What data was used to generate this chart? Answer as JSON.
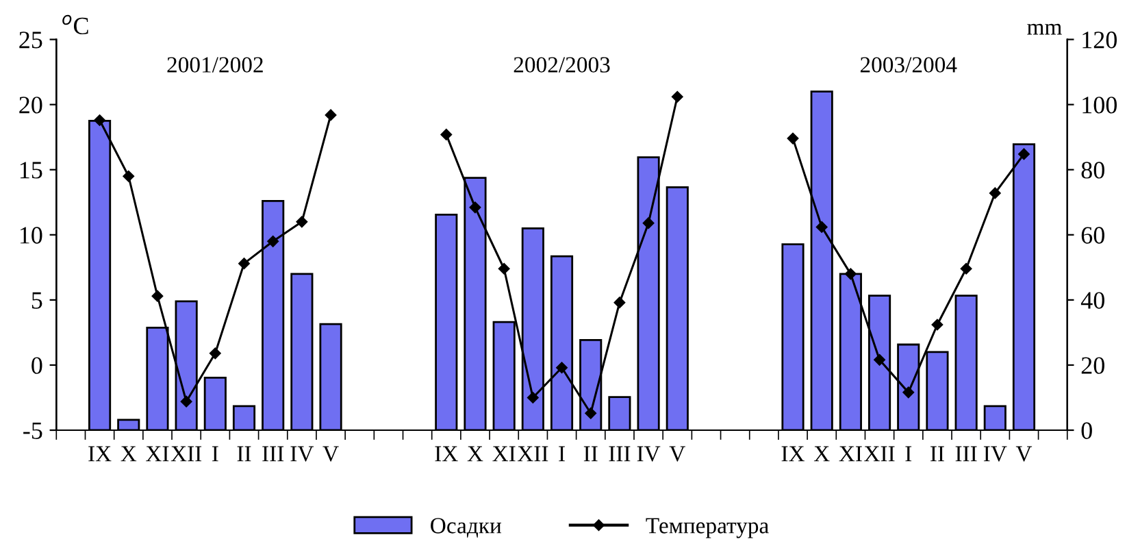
{
  "chart_data": {
    "type": "bar",
    "categories": [
      null,
      "IX",
      "X",
      "XI",
      "XII",
      "I",
      "II",
      "III",
      "IV",
      "V",
      null,
      null,
      null,
      "IX",
      "X",
      "XI",
      "XII",
      "I",
      "II",
      "III",
      "IV",
      "V",
      null,
      null,
      null,
      "IX",
      "X",
      "XI",
      "XII",
      "I",
      "II",
      "III",
      "IV",
      "V",
      null
    ],
    "series": [
      {
        "name": "Осадки",
        "axis": "y2",
        "color": "#6f6ff2",
        "values": [
          null,
          95,
          3.2,
          31.5,
          39.6,
          16.1,
          7.4,
          70.4,
          48,
          32.6,
          null,
          null,
          null,
          66.2,
          77.5,
          33.2,
          62,
          53.4,
          27.7,
          10.2,
          83.8,
          74.6,
          null,
          null,
          null,
          57.1,
          104,
          48,
          41.3,
          26.3,
          24,
          41.3,
          7.4,
          87.8,
          null
        ]
      },
      {
        "name": "Температура",
        "type": "line",
        "color": "#000000",
        "marker": "diamond",
        "values": [
          null,
          18.8,
          14.5,
          5.3,
          -2.8,
          0.9,
          7.8,
          9.5,
          11.0,
          19.2,
          null,
          null,
          null,
          17.7,
          12.1,
          7.4,
          -2.5,
          -0.2,
          -3.7,
          4.8,
          10.9,
          20.6,
          null,
          null,
          null,
          17.4,
          10.6,
          7.0,
          0.4,
          -2.1,
          3.1,
          7.4,
          13.2,
          16.2,
          null
        ]
      }
    ],
    "ylabel": "$^{o}$C",
    "y2label": "mm",
    "ylim": [
      -5,
      25
    ],
    "yticks": [
      -5,
      0,
      5,
      10,
      15,
      20,
      25
    ],
    "y2lim": [
      0,
      120
    ],
    "y2ticks": [
      0,
      20,
      40,
      60,
      80,
      100,
      120
    ],
    "annotations": [
      "2001/2002",
      "2002/2003",
      "2003/2004"
    ],
    "legend": "bottom",
    "grid": false
  }
}
